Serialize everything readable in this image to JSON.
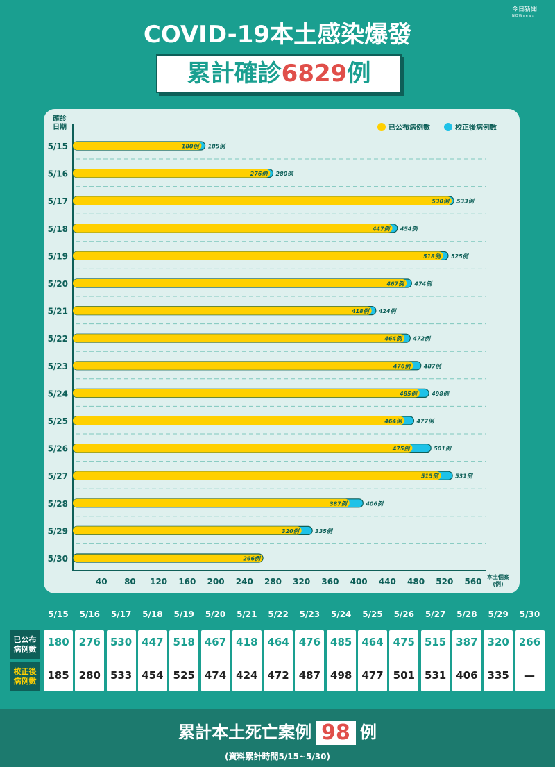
{
  "brand": {
    "name": "今日新聞",
    "sub": "NOWnews"
  },
  "title": "COVID-19本土感染爆發",
  "total": {
    "prefix": "累計確診",
    "number": "6829",
    "suffix": "例"
  },
  "chart_data": {
    "type": "bar",
    "orientation": "horizontal",
    "y_label": "確診日期",
    "x_label": "本土個案(例)",
    "categories": [
      "5/15",
      "5/16",
      "5/17",
      "5/18",
      "5/19",
      "5/20",
      "5/21",
      "5/22",
      "5/23",
      "5/24",
      "5/25",
      "5/26",
      "5/27",
      "5/28",
      "5/29",
      "5/30"
    ],
    "series": [
      {
        "name": "已公布病例數",
        "color": "#ffd000",
        "values": [
          180,
          276,
          530,
          447,
          518,
          467,
          418,
          464,
          476,
          485,
          464,
          475,
          515,
          387,
          320,
          266
        ],
        "labels": [
          "180例",
          "276例",
          "530例",
          "447例",
          "518例",
          "467例",
          "418例",
          "464例",
          "476例",
          "485例",
          "464例",
          "475例",
          "515例",
          "387例",
          "320例",
          "266例"
        ]
      },
      {
        "name": "校正後病例數",
        "color": "#1ec2e8",
        "values": [
          185,
          280,
          533,
          454,
          525,
          474,
          424,
          472,
          487,
          498,
          477,
          501,
          531,
          406,
          335,
          null
        ],
        "labels": [
          "185例",
          "280例",
          "533例",
          "454例",
          "525例",
          "474例",
          "424例",
          "472例",
          "487例",
          "498例",
          "477例",
          "501例",
          "531例",
          "406例",
          "335例",
          ""
        ]
      }
    ],
    "xticks": [
      40,
      80,
      120,
      160,
      200,
      240,
      280,
      320,
      360,
      400,
      440,
      480,
      520,
      560
    ],
    "xlim": [
      0,
      560
    ]
  },
  "table": {
    "row1_label": [
      "已公布",
      "病例數"
    ],
    "row2_label": [
      "校正後",
      "病例數"
    ],
    "published": [
      "180",
      "276",
      "530",
      "447",
      "518",
      "467",
      "418",
      "464",
      "476",
      "485",
      "464",
      "475",
      "515",
      "387",
      "320",
      "266"
    ],
    "corrected": [
      "185",
      "280",
      "533",
      "454",
      "525",
      "474",
      "424",
      "472",
      "487",
      "498",
      "477",
      "501",
      "531",
      "406",
      "335",
      "—"
    ]
  },
  "footer": {
    "death_prefix": "累計本土死亡案例",
    "death_number": "98",
    "death_suffix": "例",
    "note": "(資料累計時間5/15~5/30)"
  }
}
